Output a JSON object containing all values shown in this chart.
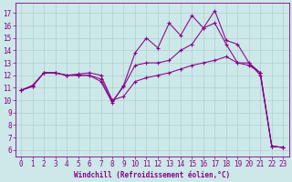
{
  "xlabel": "Windchill (Refroidissement éolien,°C)",
  "background_color": "#cce8e8",
  "line_color": "#880088",
  "grid_color": "#b0d0d0",
  "xlim": [
    -0.5,
    23.5
  ],
  "ylim": [
    5.5,
    17.8
  ],
  "xticks": [
    0,
    1,
    2,
    3,
    4,
    5,
    6,
    7,
    8,
    9,
    10,
    11,
    12,
    13,
    14,
    15,
    16,
    17,
    18,
    19,
    20,
    21,
    22,
    23
  ],
  "yticks": [
    6,
    7,
    8,
    9,
    10,
    11,
    12,
    13,
    14,
    15,
    16,
    17
  ],
  "line1_x": [
    0,
    1,
    2,
    3,
    4,
    5,
    6,
    7,
    8,
    9,
    10,
    11,
    12,
    13,
    14,
    15,
    16,
    17,
    18,
    19,
    20,
    21,
    22,
    23
  ],
  "line1_y": [
    10.8,
    11.2,
    12.2,
    12.2,
    12.0,
    12.1,
    12.2,
    12.0,
    10.0,
    10.3,
    11.5,
    11.8,
    12.0,
    12.2,
    12.5,
    12.8,
    13.0,
    13.2,
    13.5,
    13.0,
    13.0,
    12.2,
    6.3,
    6.2
  ],
  "line2_x": [
    0,
    1,
    2,
    3,
    4,
    5,
    6,
    7,
    8,
    9,
    10,
    11,
    12,
    13,
    14,
    15,
    16,
    17,
    18,
    19,
    20,
    21,
    22,
    23
  ],
  "line2_y": [
    10.8,
    11.1,
    12.2,
    12.2,
    12.0,
    12.0,
    12.0,
    11.7,
    9.9,
    11.1,
    12.8,
    13.0,
    13.0,
    13.2,
    14.0,
    14.5,
    15.8,
    16.2,
    14.5,
    13.0,
    12.8,
    12.2,
    6.3,
    6.2
  ],
  "line3_x": [
    0,
    1,
    2,
    3,
    4,
    5,
    6,
    7,
    8,
    9,
    10,
    11,
    12,
    13,
    14,
    15,
    16,
    17,
    18,
    19,
    20,
    21,
    22,
    23
  ],
  "line3_y": [
    10.8,
    11.1,
    12.2,
    12.2,
    12.0,
    12.0,
    12.0,
    11.5,
    9.8,
    11.2,
    13.8,
    15.0,
    14.2,
    16.2,
    15.2,
    16.8,
    15.8,
    17.2,
    14.8,
    14.5,
    13.0,
    12.0,
    6.3,
    6.2
  ],
  "fontsize": 5.5,
  "marker": "+",
  "markersize": 3.5,
  "linewidth": 0.75
}
